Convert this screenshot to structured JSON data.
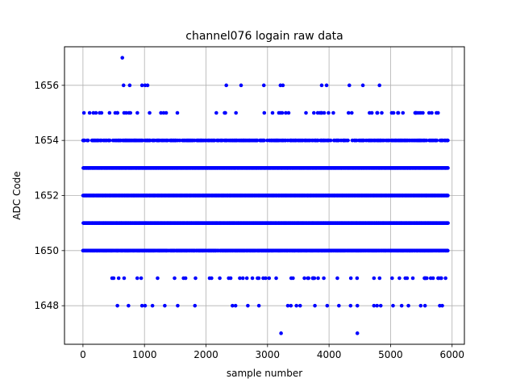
{
  "chart_data": {
    "type": "scatter",
    "title": "channel076 logain raw data",
    "xlabel": "sample number",
    "ylabel": "ADC Code",
    "xlim": [
      -300,
      6200
    ],
    "ylim": [
      1646.6,
      1657.4
    ],
    "x_ticks": [
      0,
      1000,
      2000,
      3000,
      4000,
      5000,
      6000
    ],
    "y_ticks": [
      1648,
      1650,
      1652,
      1654,
      1656
    ],
    "grid": true,
    "marker_color": "#0000ff",
    "x_range": [
      0,
      5930
    ],
    "dense_levels": [
      {
        "y": 1649.0,
        "density": 0.08
      },
      {
        "y": 1650.0,
        "density": 0.85
      },
      {
        "y": 1651.0,
        "density": 1.0
      },
      {
        "y": 1652.0,
        "density": 1.0
      },
      {
        "y": 1653.0,
        "density": 1.0
      },
      {
        "y": 1654.0,
        "density": 0.55
      },
      {
        "y": 1655.0,
        "density": 0.06
      }
    ],
    "sparse_points": [
      {
        "x": 640,
        "y": 1657
      },
      {
        "x": 660,
        "y": 1656
      },
      {
        "x": 760,
        "y": 1656
      },
      {
        "x": 960,
        "y": 1656
      },
      {
        "x": 1010,
        "y": 1656
      },
      {
        "x": 1050,
        "y": 1656
      },
      {
        "x": 2330,
        "y": 1656
      },
      {
        "x": 2570,
        "y": 1656
      },
      {
        "x": 2940,
        "y": 1656
      },
      {
        "x": 3210,
        "y": 1656
      },
      {
        "x": 3250,
        "y": 1656
      },
      {
        "x": 3880,
        "y": 1656
      },
      {
        "x": 3960,
        "y": 1656
      },
      {
        "x": 4330,
        "y": 1656
      },
      {
        "x": 4550,
        "y": 1656
      },
      {
        "x": 4820,
        "y": 1656
      },
      {
        "x": 560,
        "y": 1648
      },
      {
        "x": 740,
        "y": 1648
      },
      {
        "x": 960,
        "y": 1648
      },
      {
        "x": 1010,
        "y": 1648
      },
      {
        "x": 1130,
        "y": 1648
      },
      {
        "x": 1330,
        "y": 1648
      },
      {
        "x": 1540,
        "y": 1648
      },
      {
        "x": 1820,
        "y": 1648
      },
      {
        "x": 2430,
        "y": 1648
      },
      {
        "x": 2480,
        "y": 1648
      },
      {
        "x": 2680,
        "y": 1648
      },
      {
        "x": 2860,
        "y": 1648
      },
      {
        "x": 3330,
        "y": 1648
      },
      {
        "x": 3380,
        "y": 1648
      },
      {
        "x": 3470,
        "y": 1648
      },
      {
        "x": 3530,
        "y": 1648
      },
      {
        "x": 3770,
        "y": 1648
      },
      {
        "x": 3970,
        "y": 1648
      },
      {
        "x": 4160,
        "y": 1648
      },
      {
        "x": 4350,
        "y": 1648
      },
      {
        "x": 4460,
        "y": 1648
      },
      {
        "x": 4730,
        "y": 1648
      },
      {
        "x": 4780,
        "y": 1648
      },
      {
        "x": 4840,
        "y": 1648
      },
      {
        "x": 5040,
        "y": 1648
      },
      {
        "x": 5180,
        "y": 1648
      },
      {
        "x": 5290,
        "y": 1648
      },
      {
        "x": 5490,
        "y": 1648
      },
      {
        "x": 5560,
        "y": 1648
      },
      {
        "x": 5800,
        "y": 1648
      },
      {
        "x": 5840,
        "y": 1648
      },
      {
        "x": 3220,
        "y": 1647
      },
      {
        "x": 4460,
        "y": 1647
      }
    ]
  }
}
